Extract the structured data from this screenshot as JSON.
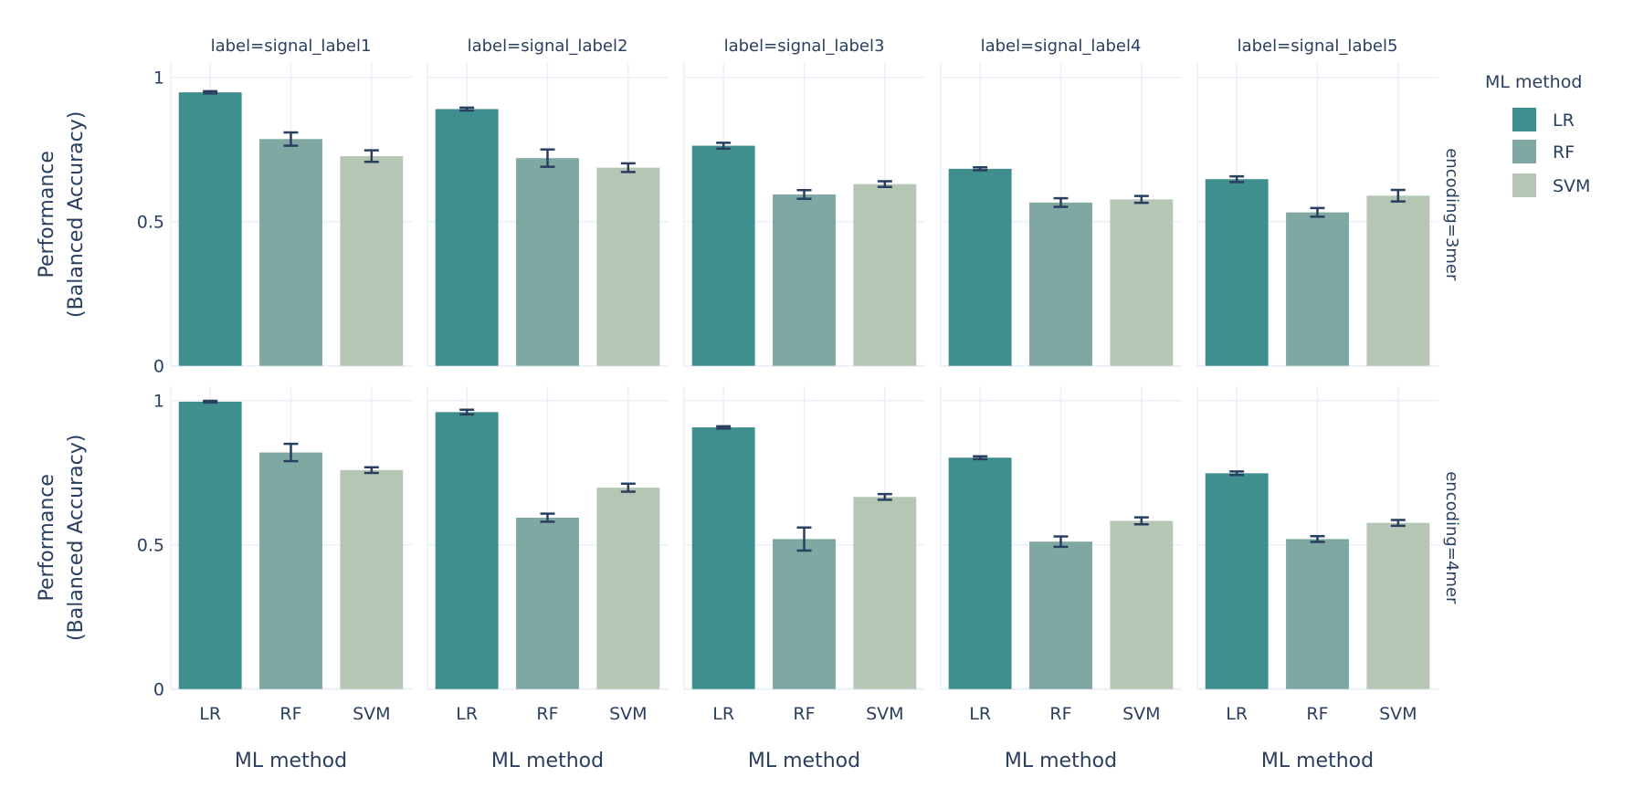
{
  "chart_data": {
    "type": "bar",
    "facet_col_titles": [
      "label=signal_label1",
      "label=signal_label2",
      "label=signal_label3",
      "label=signal_label4",
      "label=signal_label5"
    ],
    "facet_row_titles": [
      "encoding=3mer",
      "encoding=4mer"
    ],
    "categories": [
      "LR",
      "RF",
      "SVM"
    ],
    "xlabel": "ML method",
    "ylabel_lines": [
      "Performance",
      "(Balanced Accuracy)"
    ],
    "ylim": [
      0,
      1.05
    ],
    "yticks": [
      0,
      0.5,
      1
    ],
    "ytick_labels": [
      "0",
      "0.5",
      "1"
    ],
    "grid": true,
    "legend": {
      "title": "ML method",
      "position": "right",
      "entries": [
        "LR",
        "RF",
        "SVM"
      ]
    },
    "colors": {
      "LR": "#3f8f8e",
      "RF": "#7fa8a2",
      "SVM": "#b5c7b4",
      "error": "#2a3f5f",
      "grid": "#ebf0f8"
    },
    "panels": [
      [
        {
          "values": [
            0.948,
            0.786,
            0.727
          ],
          "errors": [
            0.004,
            0.023,
            0.02
          ]
        },
        {
          "values": [
            0.89,
            0.72,
            0.687
          ],
          "errors": [
            0.005,
            0.03,
            0.015
          ]
        },
        {
          "values": [
            0.763,
            0.594,
            0.63
          ],
          "errors": [
            0.01,
            0.015,
            0.01
          ]
        },
        {
          "values": [
            0.683,
            0.566,
            0.577
          ],
          "errors": [
            0.005,
            0.015,
            0.012
          ]
        },
        {
          "values": [
            0.647,
            0.532,
            0.59
          ],
          "errors": [
            0.01,
            0.015,
            0.02
          ]
        }
      ],
      [
        {
          "values": [
            0.996,
            0.82,
            0.759
          ],
          "errors": [
            0.003,
            0.03,
            0.01
          ]
        },
        {
          "values": [
            0.96,
            0.594,
            0.698
          ],
          "errors": [
            0.008,
            0.014,
            0.014
          ]
        },
        {
          "values": [
            0.907,
            0.52,
            0.666
          ],
          "errors": [
            0.004,
            0.04,
            0.01
          ]
        },
        {
          "values": [
            0.802,
            0.511,
            0.583
          ],
          "errors": [
            0.005,
            0.018,
            0.012
          ]
        },
        {
          "values": [
            0.748,
            0.52,
            0.576
          ],
          "errors": [
            0.006,
            0.01,
            0.01
          ]
        }
      ]
    ]
  }
}
